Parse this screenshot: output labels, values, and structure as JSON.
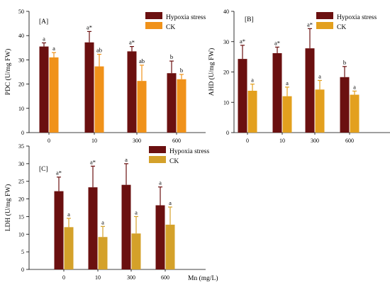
{
  "chart_data": [
    {
      "type": "bar",
      "panel": "[A]",
      "ylabel": "PDC (U/mg FW)",
      "ylim": [
        0,
        50
      ],
      "yticks": [
        0,
        10,
        20,
        30,
        40,
        50
      ],
      "categories": [
        "0",
        "10",
        "300",
        "600"
      ],
      "legend": "top-right",
      "series": [
        {
          "name": "Hypoxia stress",
          "color": "#6b1010",
          "values": [
            35.5,
            37.2,
            33.5,
            24.5
          ],
          "errors": [
            1.5,
            4.5,
            2.0,
            5.0
          ],
          "labels": [
            "a",
            "a*",
            "a*",
            "b"
          ]
        },
        {
          "name": "CK",
          "color": "#f0921a",
          "values": [
            31.0,
            27.3,
            21.3,
            22.0
          ],
          "errors": [
            2.0,
            5.0,
            6.5,
            2.0
          ],
          "labels": [
            "a",
            "ab",
            "ab",
            "b"
          ]
        }
      ]
    },
    {
      "type": "bar",
      "panel": "[B]",
      "ylabel": "AHD (U/mg FW)",
      "ylim": [
        0,
        40
      ],
      "yticks": [
        0,
        10,
        20,
        30,
        40
      ],
      "categories": [
        "0",
        "10",
        "300",
        "600"
      ],
      "legend": "top-right",
      "series": [
        {
          "name": "Hypoxia stress",
          "color": "#6b1010",
          "values": [
            24.3,
            26.2,
            27.8,
            18.3
          ],
          "errors": [
            4.5,
            2.0,
            6.5,
            3.5
          ],
          "labels": [
            "a*",
            "a*",
            "a*",
            "b"
          ]
        },
        {
          "name": "CK",
          "color": "#e3a01e",
          "values": [
            13.8,
            12.0,
            14.2,
            12.5
          ],
          "errors": [
            2.2,
            3.0,
            3.0,
            1.2
          ],
          "labels": [
            "a",
            "a",
            "a",
            "a"
          ]
        }
      ]
    },
    {
      "type": "bar",
      "panel": "[C]",
      "ylabel": "LDH (U/mg FW)",
      "xlabel": "Mn (mg/L)",
      "ylim": [
        0,
        35
      ],
      "yticks": [
        0,
        5,
        10,
        15,
        20,
        25,
        30,
        35
      ],
      "categories": [
        "0",
        "10",
        "300",
        "600"
      ],
      "legend": "top-right",
      "series": [
        {
          "name": "Hypoxia stress",
          "color": "#6b1010",
          "values": [
            22.2,
            23.3,
            24.0,
            18.2
          ],
          "errors": [
            4.0,
            6.0,
            6.0,
            5.2
          ],
          "labels": [
            "a*",
            "a*",
            "a",
            "a"
          ]
        },
        {
          "name": "CK",
          "color": "#d4a12a",
          "values": [
            12.0,
            9.2,
            10.2,
            12.7
          ],
          "errors": [
            2.5,
            3.0,
            4.8,
            5.0
          ],
          "labels": [
            "a",
            "a",
            "a",
            "a"
          ]
        }
      ]
    }
  ]
}
